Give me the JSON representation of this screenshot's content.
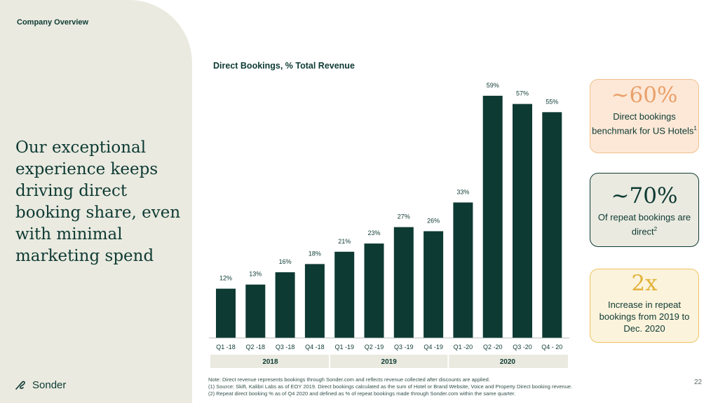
{
  "header": {
    "section_label": "Company Overview"
  },
  "headline": "Our exceptional experience keeps driving direct booking share, even with minimal marketing spend",
  "logo": {
    "text": "Sonder"
  },
  "chart_data": {
    "type": "bar",
    "title": "Direct Bookings, % Total Revenue",
    "categories": [
      "Q1 -18",
      "Q2 -18",
      "Q3 -18",
      "Q4 -18",
      "Q1 -19",
      "Q2 -19",
      "Q3 -19",
      "Q4 -19",
      "Q1 -20",
      "Q2 -20",
      "Q3 -20",
      "Q4 - 20"
    ],
    "values": [
      12,
      13,
      16,
      18,
      21,
      23,
      27,
      26,
      33,
      59,
      57,
      55
    ],
    "data_labels": [
      "12%",
      "13%",
      "16%",
      "18%",
      "21%",
      "23%",
      "27%",
      "26%",
      "33%",
      "59%",
      "57%",
      "55%"
    ],
    "groups": [
      {
        "label": "2018",
        "count": 4
      },
      {
        "label": "2019",
        "count": 4
      },
      {
        "label": "2020",
        "count": 4
      }
    ],
    "ylim": [
      0,
      60
    ],
    "bar_color": "#0d3a33",
    "xlabel": "",
    "ylabel": ""
  },
  "callouts": [
    {
      "big": "~60%",
      "text": "Direct bookings benchmark for US Hotels",
      "sup": "1"
    },
    {
      "big": "~70%",
      "text": "Of repeat bookings are direct",
      "sup": "2"
    },
    {
      "big": "2x",
      "text": "Increase in repeat bookings from 2019 to Dec. 2020",
      "sup": ""
    }
  ],
  "footnotes": [
    "Note: Direct revenue represents bookings through Sonder.com and reflects revenue collected after discounts are applied.",
    "(1) Source: Skift, Kalibri Labs as of EOY 2019. Direct bookings calculated as the sum of Hotel or Brand Website, Voice and Property Direct booking revenue.",
    "(2) Repeat direct booking % as of Q4 2020 and defined as % of repeat bookings made through Sonder.com within the same quarter."
  ],
  "page_number": "22",
  "colors": {
    "dark_green": "#0d3a33",
    "panel_beige": "#eaeae0",
    "peach": "#e9a06b",
    "gold": "#e2b23a"
  }
}
